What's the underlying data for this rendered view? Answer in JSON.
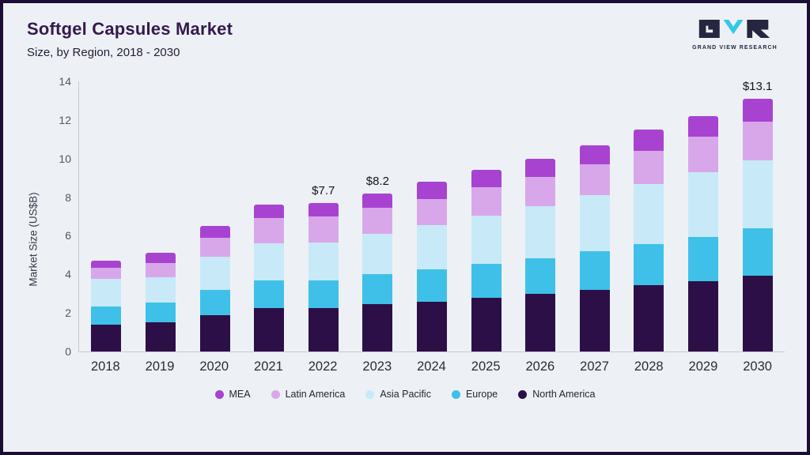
{
  "header": {
    "title": "Softgel Capsules Market",
    "subtitle": "Size, by Region, 2018 - 2030",
    "logo_text": "GRAND VIEW RESEARCH"
  },
  "colors": {
    "background": "#edf1f5",
    "frame_border": "#1b0e35",
    "title": "#36194e",
    "logo_dark": "#262640",
    "logo_cyan": "#35c5e8"
  },
  "chart_data": {
    "type": "bar",
    "stacked": true,
    "title": "Softgel Capsules Market Size, by Region, 2018 - 2030",
    "xlabel": "",
    "ylabel": "Market Size (US$B)",
    "ylim": [
      0,
      14
    ],
    "yticks": [
      0,
      2,
      4,
      6,
      8,
      10,
      12,
      14
    ],
    "grid": false,
    "legend_position": "bottom",
    "categories": [
      "2018",
      "2019",
      "2020",
      "2021",
      "2022",
      "2023",
      "2024",
      "2025",
      "2026",
      "2027",
      "2028",
      "2029",
      "2030"
    ],
    "series": [
      {
        "name": "North America",
        "color": "#2c0f47",
        "values": [
          1.4,
          1.5,
          1.9,
          2.25,
          2.25,
          2.45,
          2.6,
          2.8,
          3.0,
          3.2,
          3.45,
          3.65,
          3.95
        ]
      },
      {
        "name": "Europe",
        "color": "#3fc0e8",
        "values": [
          0.95,
          1.05,
          1.3,
          1.45,
          1.45,
          1.55,
          1.65,
          1.75,
          1.85,
          2.0,
          2.1,
          2.3,
          2.45
        ]
      },
      {
        "name": "Asia Pacific",
        "color": "#c8e9f8",
        "values": [
          1.4,
          1.3,
          1.7,
          1.9,
          1.95,
          2.1,
          2.3,
          2.5,
          2.7,
          2.9,
          3.15,
          3.35,
          3.5
        ]
      },
      {
        "name": "Latin America",
        "color": "#d8a7ea",
        "values": [
          0.6,
          0.75,
          1.0,
          1.3,
          1.35,
          1.35,
          1.35,
          1.45,
          1.5,
          1.6,
          1.7,
          1.85,
          2.0
        ]
      },
      {
        "name": "MEA",
        "color": "#a843d1",
        "values": [
          0.35,
          0.5,
          0.6,
          0.7,
          0.7,
          0.75,
          0.9,
          0.9,
          0.95,
          1.0,
          1.1,
          1.05,
          1.2
        ]
      }
    ],
    "totals": [
      4.7,
      5.1,
      6.5,
      7.6,
      7.7,
      8.2,
      8.8,
      9.4,
      10.0,
      10.7,
      11.5,
      12.2,
      13.1
    ],
    "annotations": [
      {
        "category": "2022",
        "text": "$7.7"
      },
      {
        "category": "2023",
        "text": "$8.2"
      },
      {
        "category": "2030",
        "text": "$13.1"
      }
    ],
    "legend_order": [
      "MEA",
      "Latin America",
      "Asia Pacific",
      "Europe",
      "North America"
    ]
  }
}
